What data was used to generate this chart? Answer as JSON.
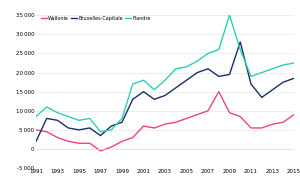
{
  "years": [
    1991,
    1992,
    1993,
    1994,
    1995,
    1996,
    1997,
    1998,
    1999,
    2000,
    2001,
    2002,
    2003,
    2004,
    2005,
    2006,
    2007,
    2008,
    2009,
    2010,
    2011,
    2012,
    2013,
    2014,
    2015
  ],
  "wallonie": [
    5000,
    4500,
    3000,
    2000,
    1500,
    1500,
    -500,
    500,
    2000,
    3000,
    6000,
    5500,
    6500,
    7000,
    8000,
    9000,
    10000,
    15000,
    9500,
    8500,
    5500,
    5500,
    6500,
    7000,
    9000
  ],
  "bruxelles": [
    2000,
    8000,
    7500,
    5500,
    5000,
    5500,
    3500,
    6000,
    7000,
    13000,
    15000,
    13000,
    14000,
    16000,
    18000,
    20000,
    21000,
    19000,
    19500,
    28000,
    17000,
    13500,
    15500,
    17500,
    18500
  ],
  "flandre": [
    8500,
    11000,
    9500,
    8500,
    7500,
    8000,
    4500,
    5000,
    8000,
    17000,
    18000,
    15500,
    18000,
    21000,
    21500,
    23000,
    25000,
    26000,
    35000,
    26000,
    19000,
    20000,
    21000,
    22000,
    22500
  ],
  "wallonie_color": "#f0437a",
  "bruxelles_color": "#1a2e6e",
  "flandre_color": "#2ecfb2",
  "ylim": [
    -5000,
    35000
  ],
  "yticks": [
    -5000,
    0,
    5000,
    10000,
    15000,
    20000,
    25000,
    30000,
    35000
  ],
  "legend_labels": [
    "Wallonie",
    "Bruxelles-Capitale",
    "Flandre"
  ],
  "bg_color": "#ffffff",
  "grid_color": "#e0e0e0"
}
